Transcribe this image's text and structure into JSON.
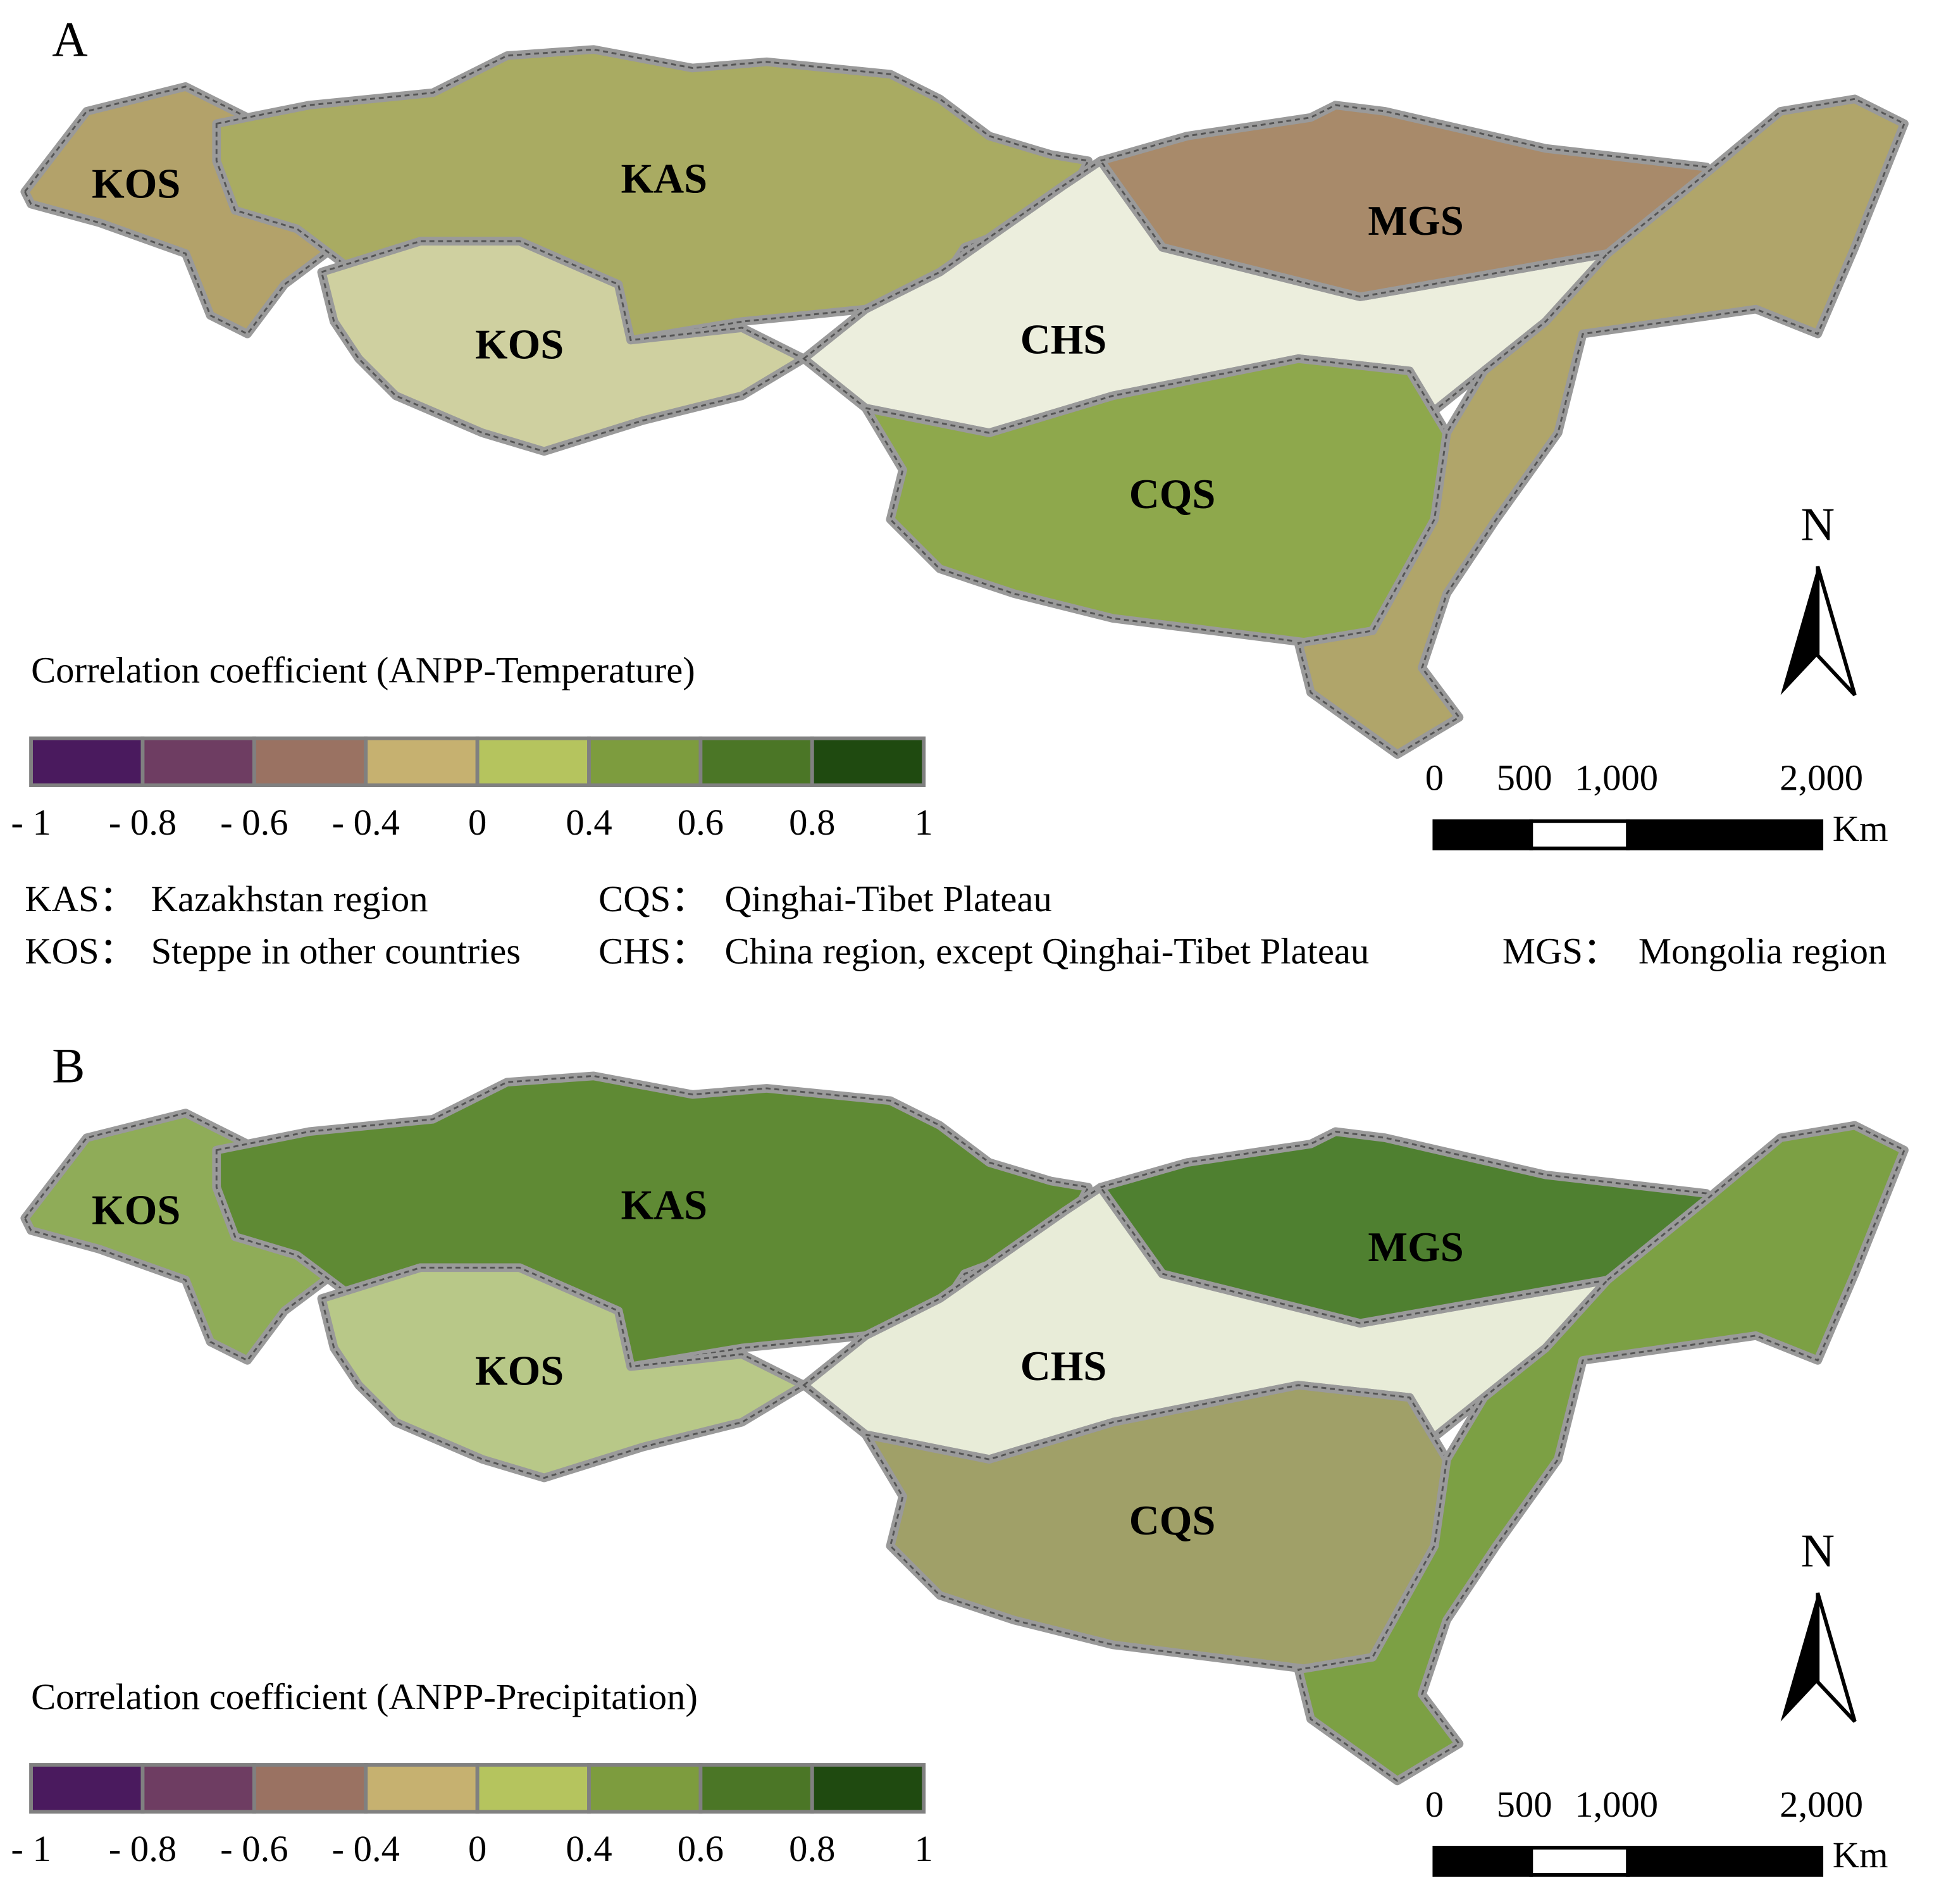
{
  "panels": [
    {
      "label": "A",
      "regions": [
        "KOS",
        "KAS",
        "KOS",
        "CHS",
        "CQS",
        "MGS"
      ],
      "legend": {
        "title": "Correlation coefficient (ANPP-Temperature)",
        "colors": [
          "#4a1a5e",
          "#6e3d62",
          "#9a7262",
          "#c6b170",
          "#b5c45e",
          "#7d9c3e",
          "#4b7626",
          "#1f4a10"
        ],
        "ticks": [
          {
            "value": -1,
            "label": "- 1"
          },
          {
            "value": -0.8,
            "label": "- 0.8"
          },
          {
            "value": -0.6,
            "label": "- 0.6"
          },
          {
            "value": -0.4,
            "label": "- 0.4"
          },
          0,
          0.4,
          0.6,
          0.8,
          1
        ]
      },
      "north": "N",
      "scale": {
        "ticks": [
          0,
          500,
          {
            "value": 1000,
            "label": "1,000"
          },
          {
            "value": 2000,
            "label": "2,000"
          }
        ],
        "unit": "Km"
      }
    },
    {
      "label": "B",
      "regions": [
        "KOS",
        "KAS",
        "KOS",
        "CHS",
        "CQS",
        "MGS"
      ],
      "legend": {
        "title": "Correlation coefficient (ANPP-Precipitation)",
        "colors": [
          "#4a1a5e",
          "#6e3d62",
          "#9a7262",
          "#c6b170",
          "#b5c45e",
          "#7d9c3e",
          "#4b7626",
          "#1f4a10"
        ],
        "ticks": [
          {
            "value": -1,
            "label": "- 1"
          },
          {
            "value": -0.8,
            "label": "- 0.8"
          },
          {
            "value": -0.6,
            "label": "- 0.6"
          },
          {
            "value": -0.4,
            "label": "- 0.4"
          },
          0,
          0.4,
          0.6,
          0.8,
          1
        ]
      },
      "north": "N",
      "scale": {
        "ticks": [
          0,
          500,
          {
            "value": 1000,
            "label": "1,000"
          },
          {
            "value": 2000,
            "label": "2,000"
          }
        ],
        "unit": "Km"
      }
    }
  ],
  "key": [
    {
      "abbr": "KAS：",
      "text": "Kazakhstan  region"
    },
    {
      "abbr": "CQS：",
      "text": "Qinghai-Tibet Plateau"
    },
    {
      "abbr": "KOS：",
      "text": "Steppe in other countries"
    },
    {
      "abbr": "CHS：",
      "text": "China region, except Qinghai-Tibet Plateau"
    },
    {
      "abbr": "MGS：",
      "text": "Mongolia region"
    }
  ]
}
